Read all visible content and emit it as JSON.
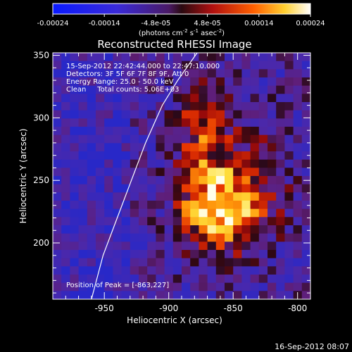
{
  "colorbar": {
    "ticks": [
      "-0.00024",
      "-0.00014",
      "-4.8e-05",
      "4.8e-05",
      "0.00014",
      "0.00024"
    ],
    "unit_prefix": "(photons cm",
    "unit_exp1": "-2",
    "unit_mid": " s",
    "unit_exp2": "-1",
    "unit_suffix": " asec",
    "unit_exp3": "-2",
    "unit_close": ")"
  },
  "chart_data": {
    "type": "heatmap",
    "title": "Reconstructed RHESSI Image",
    "xlabel": "Heliocentric X (arcsec)",
    "ylabel": "Heliocentric Y (arcsec)",
    "xlim": [
      -990,
      -790
    ],
    "ylim": [
      155,
      352
    ],
    "x_ticks": [
      -950,
      -900,
      -850,
      -800
    ],
    "y_ticks": [
      200,
      250,
      300,
      350
    ],
    "value_range": [
      -0.00024,
      0.00024
    ],
    "colormap": "rhessi (blue-purple-red-yellow-white)",
    "peak_location": [
      -863,
      227
    ],
    "annotations": [
      "15-Sep-2012 22:42:44.000 to 22:47:10.000",
      "Detectors: 3F 5F 6F 7F 8F 9F, Att 0",
      "Energy Range: 25.0 - 50.0 keV",
      "Clean     Total counts: 5.06E+03",
      "Position of Peak = [-863,227]"
    ],
    "limb_curve_x": [
      -960,
      -951,
      -940,
      -929,
      -918,
      -905,
      -893,
      -878
    ],
    "limb_curve_y": [
      155,
      190,
      220,
      250,
      280,
      310,
      330,
      352
    ]
  },
  "footer": {
    "timestamp": "16-Sep-2012 08:07"
  }
}
